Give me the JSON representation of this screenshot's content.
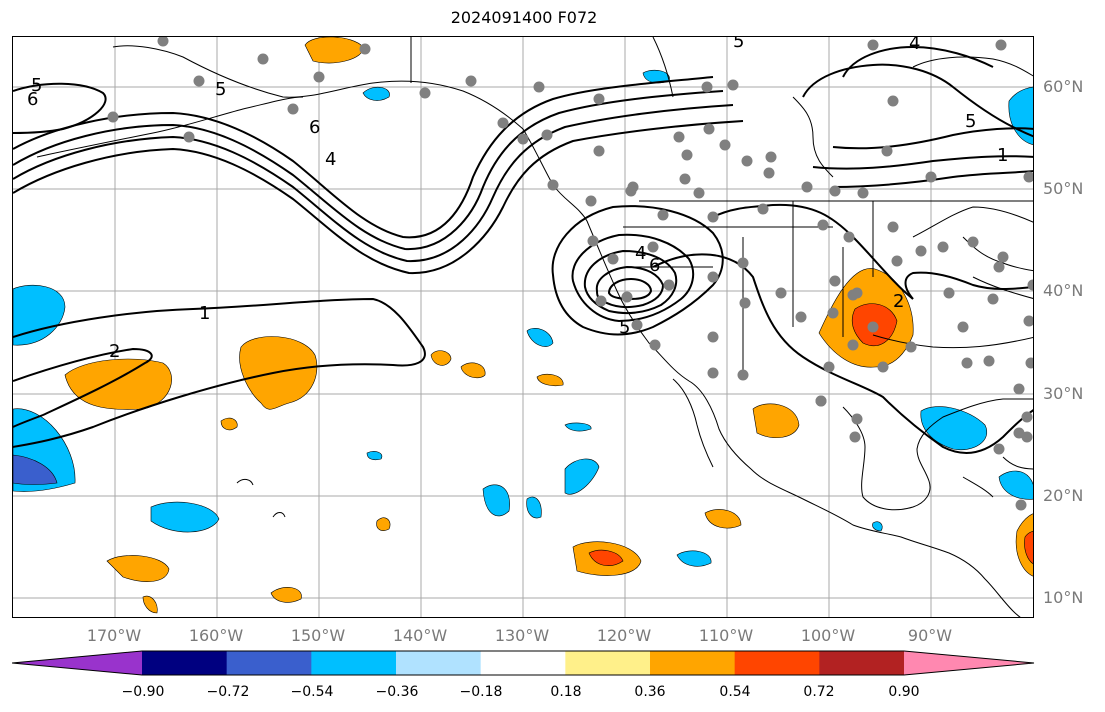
{
  "title": "2024091400 F072",
  "lat_labels": [
    "60°N",
    "50°N",
    "40°N",
    "30°N",
    "20°N",
    "10°N"
  ],
  "lon_labels": [
    "170°W",
    "160°W",
    "150°W",
    "140°W",
    "130°W",
    "120°W",
    "110°W",
    "100°W",
    "90°W"
  ],
  "colorbar": {
    "ticks": [
      "−0.90",
      "−0.72",
      "−0.54",
      "−0.36",
      "−0.18",
      "0.18",
      "0.36",
      "0.54",
      "0.72",
      "0.90"
    ],
    "colors": [
      "#9933cc",
      "#000080",
      "#3a5fcd",
      "#00bfff",
      "#b0e2ff",
      "#ffffff",
      "#fff08a",
      "#ffa500",
      "#ff4500",
      "#b22222",
      "#ff88b0"
    ]
  },
  "contour_labels": [
    "1",
    "2",
    "4",
    "5",
    "6"
  ],
  "colors": {
    "contour": "#000000",
    "station": "#808080",
    "positive": "#ffa500",
    "strong_positive": "#ff4500",
    "negative": "#00bfff",
    "strong_negative": "#3a5fcd"
  }
}
